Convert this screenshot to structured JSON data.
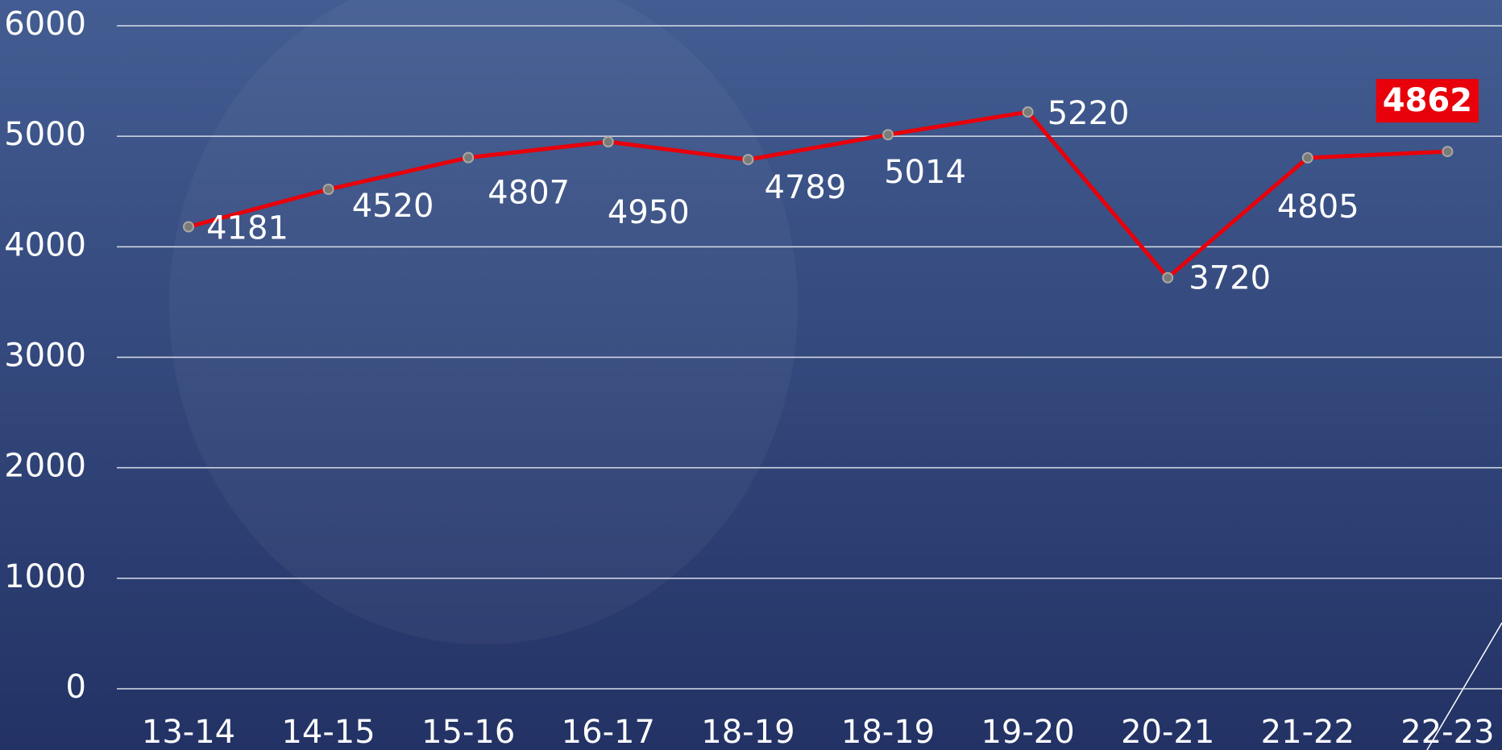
{
  "chart_data": {
    "type": "line",
    "categories": [
      "13-14",
      "14-15",
      "15-16",
      "16-17",
      "18-19",
      "18-19",
      "19-20",
      "20-21",
      "21-22",
      "22-23"
    ],
    "series": [
      {
        "color": "#e8000a",
        "values": [
          4181,
          4520,
          4807,
          4950,
          4789,
          5014,
          5220,
          3720,
          4805,
          4862
        ]
      }
    ],
    "ylim": [
      0,
      6000
    ],
    "yticks": [
      0,
      1000,
      2000,
      3000,
      4000,
      5000,
      6000
    ],
    "grid": true
  }
}
